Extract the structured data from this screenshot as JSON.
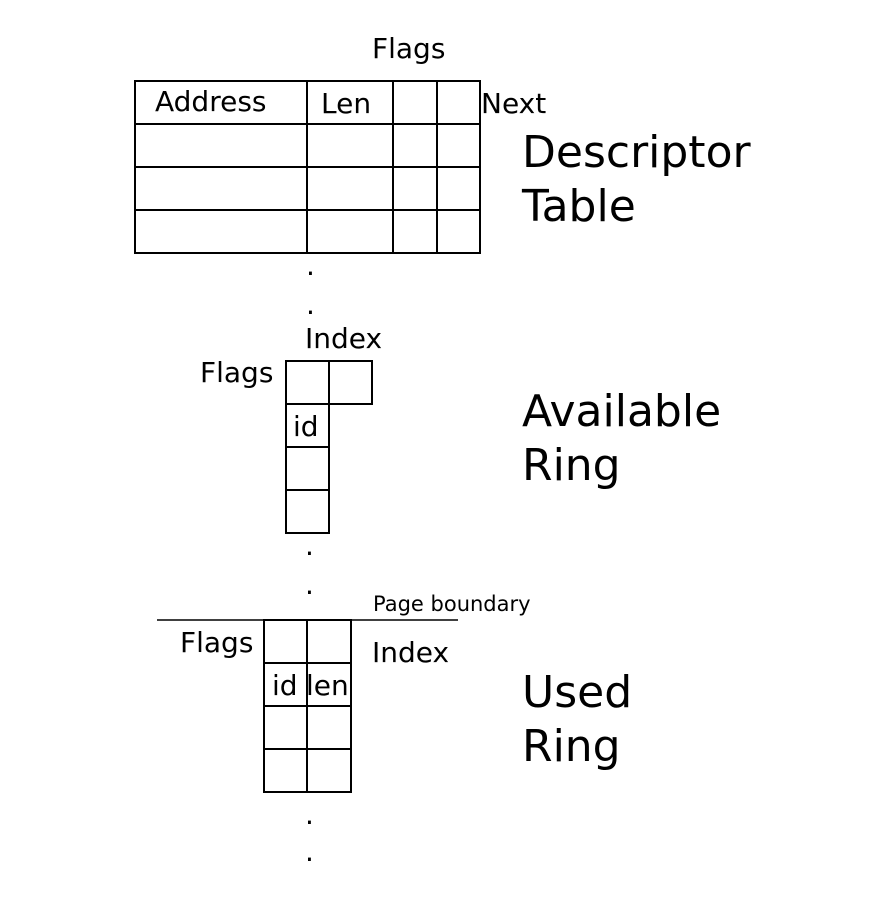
{
  "descriptor_table": {
    "title_line1": "Descriptor",
    "title_line2": "Table",
    "flags_label": "Flags",
    "address_label": "Address",
    "len_label": "Len",
    "next_label": "Next"
  },
  "available_ring": {
    "title_line1": "Available",
    "title_line2": "Ring",
    "flags_label": "Flags",
    "index_label": "Index",
    "id_label": "id"
  },
  "used_ring": {
    "title_line1": "Used",
    "title_line2": "Ring",
    "flags_label": "Flags",
    "index_label": "Index",
    "id_label": "id",
    "len_label": "len"
  },
  "page_boundary_label": "Page boundary",
  "ellipsis_dot": "."
}
